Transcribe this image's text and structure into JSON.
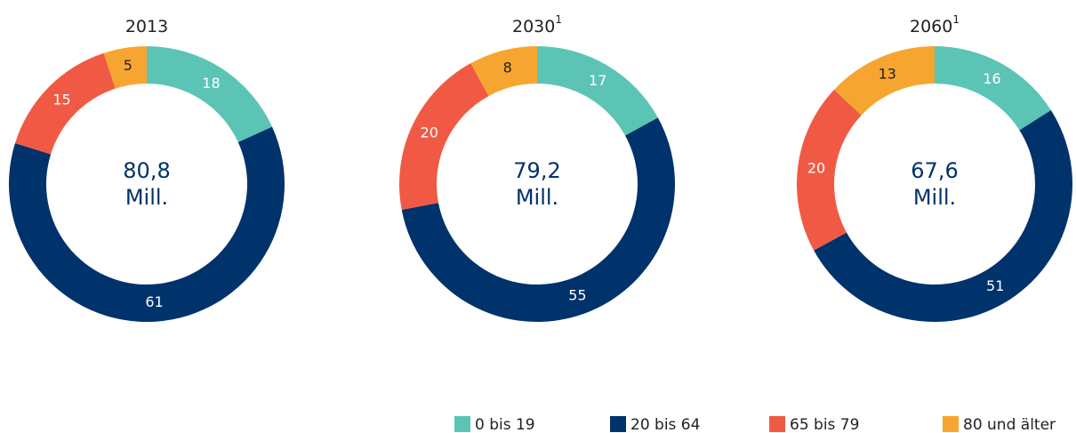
{
  "chart_data": [
    {
      "type": "donut",
      "title": "2013",
      "values": [
        18,
        61,
        15,
        5
      ],
      "center_value": "80,8",
      "center_unit": "Mill."
    },
    {
      "type": "donut",
      "title": "2030",
      "title_note": "1",
      "values": [
        17,
        55,
        20,
        8
      ],
      "center_value": "79,2",
      "center_unit": "Mill."
    },
    {
      "type": "donut",
      "title": "2060",
      "title_note": "1",
      "values": [
        16,
        51,
        20,
        13
      ],
      "center_value": "67,6",
      "center_unit": "Mill."
    }
  ],
  "legend": {
    "categories": [
      "0 bis 19",
      "20 bis 64",
      "65 bis 79",
      "80 und älter"
    ],
    "colors": [
      "#5bc4b5",
      "#00326b",
      "#f05a44",
      "#f7a531"
    ],
    "label_colors": [
      "#ffffff",
      "#ffffff",
      "#ffffff",
      "#222222"
    ]
  }
}
